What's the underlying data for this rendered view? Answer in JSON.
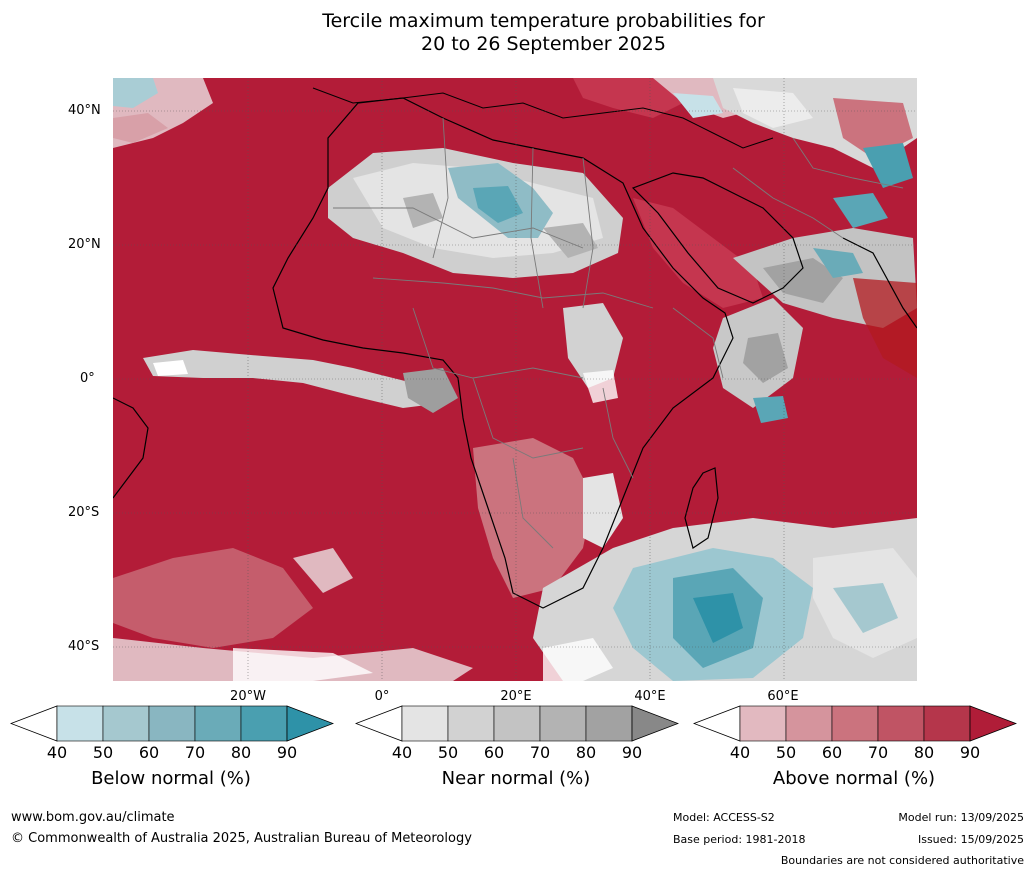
{
  "title": {
    "line1": "Tercile maximum temperature probabilities for",
    "line2": "20 to 26 September 2025"
  },
  "map": {
    "lat_labels": [
      "40°N",
      "20°N",
      "0°",
      "20°S",
      "40°S"
    ],
    "lon_labels": [
      "20°W",
      "0°",
      "20°E",
      "40°E",
      "60°E"
    ],
    "colors": {
      "ocean_above": "#b31c38",
      "land_above": "#c5364f",
      "near_normal": "#c8c8c8",
      "below_normal": "#5aa6b6",
      "coast": "#000000",
      "borders": "#7a7a7a"
    }
  },
  "legend": [
    {
      "label": "Below normal (%)",
      "ticks": [
        "40",
        "50",
        "60",
        "70",
        "80",
        "90"
      ],
      "colors": [
        "#ffffff",
        "#c7e1e8",
        "#a5c8cf",
        "#89b6c1",
        "#6aabb8",
        "#4a9fb0",
        "#2e92a8"
      ]
    },
    {
      "label": "Near normal (%)",
      "ticks": [
        "40",
        "50",
        "60",
        "70",
        "80",
        "90"
      ],
      "colors": [
        "#ffffff",
        "#e4e4e4",
        "#d2d2d2",
        "#c3c3c3",
        "#b3b3b3",
        "#a2a2a2",
        "#888888"
      ]
    },
    {
      "label": "Above normal (%)",
      "ticks": [
        "40",
        "50",
        "60",
        "70",
        "80",
        "90"
      ],
      "colors": [
        "#ffffff",
        "#e2b9c0",
        "#d5949d",
        "#cb737e",
        "#c05464",
        "#b5364b",
        "#b01d38"
      ]
    }
  ],
  "footer": {
    "website": "www.bom.gov.au/climate",
    "copyright": "© Commonwealth of Australia 2025, Australian Bureau of Meteorology",
    "model": "Model: ACCESS-S2",
    "base_period": "Base period: 1981-2018",
    "model_run": "Model run: 13/09/2025",
    "issued": "Issued: 15/09/2025",
    "disclaimer": "Boundaries are not considered authoritative"
  }
}
